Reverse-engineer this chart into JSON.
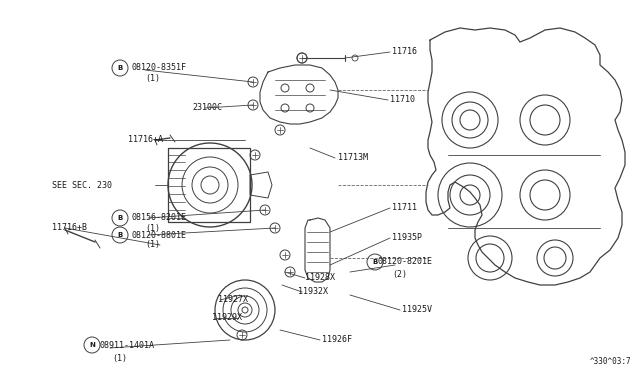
{
  "bg_color": "#ffffff",
  "line_color": "#404040",
  "text_color": "#1a1a1a",
  "diagram_code": "^330^03:7",
  "fig_w": 6.4,
  "fig_h": 3.72,
  "dpi": 100,
  "xlim": [
    0,
    640
  ],
  "ylim": [
    0,
    372
  ]
}
